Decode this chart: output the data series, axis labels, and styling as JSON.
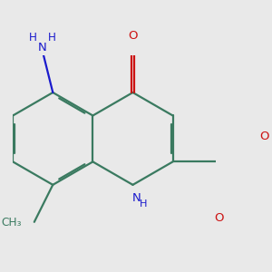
{
  "bg": "#e9e9e9",
  "bc": "#3a7a60",
  "nc": "#1a1acc",
  "oc": "#cc1111",
  "lw": 1.6,
  "dbo": 0.04,
  "figsize": [
    3.0,
    3.0
  ],
  "dpi": 100,
  "xlim": [
    -2.6,
    1.8
  ],
  "ylim": [
    -1.9,
    1.8
  ],
  "fs_label": 9.5
}
